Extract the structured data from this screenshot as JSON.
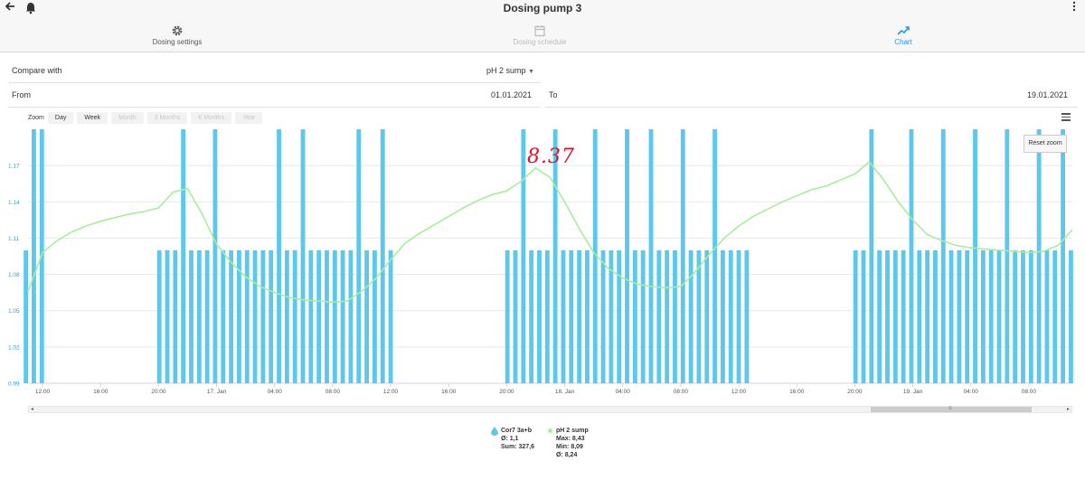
{
  "header": {
    "title": "Dosing pump 3",
    "back_icon": "arrow-left-icon",
    "bell_icon": "bell-icon",
    "menu_icon": "more-vertical-icon"
  },
  "tabs": [
    {
      "label": "Dosing settings",
      "icon": "gear-icon",
      "state": "normal"
    },
    {
      "label": "Dosing schedule",
      "icon": "calendar-icon",
      "state": "disabled"
    },
    {
      "label": "Chart",
      "icon": "trending-up-icon",
      "state": "active"
    }
  ],
  "form": {
    "compare_label": "Compare with",
    "compare_value": "pH 2 sump",
    "from_label": "From",
    "from_value": "01.01.2021",
    "to_label": "To",
    "to_value": "19.01.2021"
  },
  "zoom": {
    "label": "Zoom",
    "buttons": [
      {
        "label": "Day",
        "enabled": true
      },
      {
        "label": "Week",
        "enabled": true
      },
      {
        "label": "Month",
        "enabled": false
      },
      {
        "label": "3 Months",
        "enabled": false
      },
      {
        "label": "6 Months",
        "enabled": false
      },
      {
        "label": "Year",
        "enabled": false
      }
    ]
  },
  "reset_zoom_label": "Reset zoom",
  "annotation": "8.37",
  "legend": {
    "series1": {
      "name": "Cor7 3a+b",
      "line1": "Ø: 1,1",
      "line2": "Sum: 327,6"
    },
    "series2": {
      "name": "pH 2 sump",
      "line1": "Max: 8,43",
      "line2": "Min: 8,09",
      "line3": "Ø: 8,24"
    }
  },
  "colors": {
    "accent": "#2196f3",
    "bar": "#5bc8ec",
    "line": "#a8ee9a",
    "annotation": "#e0102a"
  },
  "chart_data": {
    "type": "bar+line",
    "y_ticks": [
      "0.99",
      "1.02",
      "1.05",
      "1.08",
      "1.11",
      "1.14",
      "1.17"
    ],
    "y_range": [
      0.99,
      1.2
    ],
    "x_ticks": [
      "12:00",
      "16:00",
      "20:00",
      "17. Jan",
      "04:00",
      "08:00",
      "12:00",
      "16:00",
      "20:00",
      "18. Jan",
      "04:00",
      "08:00",
      "12:00",
      "16:00",
      "20:00",
      "19. Jan",
      "04:00",
      "08:00"
    ],
    "x_range_hours": [
      0,
      72
    ],
    "x_tick_hours": [
      1,
      5,
      9,
      13,
      17,
      21,
      25,
      29,
      33,
      37,
      41,
      45,
      49,
      53,
      57,
      61,
      65,
      69
    ],
    "bar_value_base": 1.1,
    "bar_value_peak": 1.2,
    "bar_blocks_hours": [
      [
        -0.3,
        1.2
      ],
      [
        8.9,
        25.4
      ],
      [
        32.9,
        49.4
      ],
      [
        56.9,
        72
      ]
    ],
    "tall_bar_hours": [
      0.4,
      0.9,
      10.6,
      12.9,
      16.9,
      19.0,
      22.5,
      24.4,
      34.0,
      36.1,
      38.9,
      41.0,
      43.0,
      45.0,
      47.0,
      58.2,
      60.5,
      63.0,
      65.1,
      67.4,
      69.4,
      71.2
    ],
    "line_series": {
      "name": "pH 2 sump",
      "points": [
        [
          0,
          1.066
        ],
        [
          1,
          1.098
        ],
        [
          2,
          1.108
        ],
        [
          3,
          1.115
        ],
        [
          4,
          1.12
        ],
        [
          5,
          1.124
        ],
        [
          6,
          1.127
        ],
        [
          7,
          1.13
        ],
        [
          8,
          1.132
        ],
        [
          9,
          1.135
        ],
        [
          10,
          1.148
        ],
        [
          11,
          1.151
        ],
        [
          12,
          1.13
        ],
        [
          13,
          1.105
        ],
        [
          14,
          1.09
        ],
        [
          15,
          1.078
        ],
        [
          16,
          1.07
        ],
        [
          17,
          1.065
        ],
        [
          18,
          1.061
        ],
        [
          19,
          1.059
        ],
        [
          20,
          1.058
        ],
        [
          21,
          1.057
        ],
        [
          22,
          1.058
        ],
        [
          23,
          1.066
        ],
        [
          24,
          1.077
        ],
        [
          25,
          1.092
        ],
        [
          26,
          1.106
        ],
        [
          27,
          1.114
        ],
        [
          28,
          1.121
        ],
        [
          29,
          1.128
        ],
        [
          30,
          1.135
        ],
        [
          31,
          1.141
        ],
        [
          32,
          1.146
        ],
        [
          33,
          1.149
        ],
        [
          34,
          1.157
        ],
        [
          35,
          1.168
        ],
        [
          36,
          1.16
        ],
        [
          37,
          1.14
        ],
        [
          38,
          1.118
        ],
        [
          39,
          1.098
        ],
        [
          40,
          1.085
        ],
        [
          41,
          1.077
        ],
        [
          42,
          1.072
        ],
        [
          43,
          1.07
        ],
        [
          44,
          1.069
        ],
        [
          45,
          1.07
        ],
        [
          46,
          1.082
        ],
        [
          47,
          1.097
        ],
        [
          48,
          1.11
        ],
        [
          49,
          1.12
        ],
        [
          50,
          1.128
        ],
        [
          51,
          1.134
        ],
        [
          52,
          1.14
        ],
        [
          53,
          1.145
        ],
        [
          54,
          1.15
        ],
        [
          55,
          1.153
        ],
        [
          56,
          1.158
        ],
        [
          57,
          1.163
        ],
        [
          58,
          1.173
        ],
        [
          59,
          1.158
        ],
        [
          60,
          1.14
        ],
        [
          61,
          1.125
        ],
        [
          62,
          1.113
        ],
        [
          63,
          1.108
        ],
        [
          64,
          1.104
        ],
        [
          65,
          1.102
        ],
        [
          66,
          1.101
        ],
        [
          67,
          1.1
        ],
        [
          68,
          1.099
        ],
        [
          69,
          1.098
        ],
        [
          70,
          1.099
        ],
        [
          71,
          1.104
        ],
        [
          72,
          1.117
        ]
      ]
    }
  }
}
